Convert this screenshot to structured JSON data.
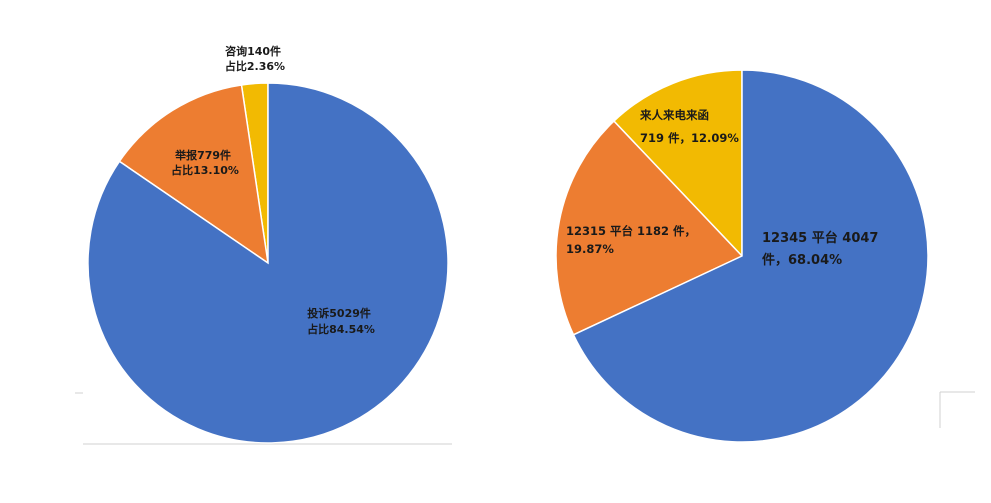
{
  "chart_data": [
    {
      "type": "pie",
      "slices": [
        {
          "label_line1": "咨询140件",
          "label_line2": "占比2.36%",
          "value": 140,
          "percent": 2.36,
          "color": "#F2BA02"
        },
        {
          "label_line1": "举报779件",
          "label_line2": "占比13.10%",
          "value": 779,
          "percent": 13.1,
          "color": "#ED7D31"
        },
        {
          "label_line1": "投诉5029件",
          "label_line2": "占比84.54%",
          "value": 5029,
          "percent": 84.54,
          "color": "#4472C4"
        }
      ]
    },
    {
      "type": "pie",
      "slices": [
        {
          "label_line1": "来人来电来函",
          "label_line2": "719 件，12.09%",
          "value": 719,
          "percent": 12.09,
          "color": "#F2BA02"
        },
        {
          "label_line1": "12315 平台 1182 件，",
          "label_line2": "19.87%",
          "value": 1182,
          "percent": 19.87,
          "color": "#ED7D31"
        },
        {
          "label_line1": "12345 平台 4047",
          "label_line2": "件，68.04%",
          "value": 4047,
          "percent": 68.04,
          "color": "#4472C4"
        }
      ]
    }
  ]
}
